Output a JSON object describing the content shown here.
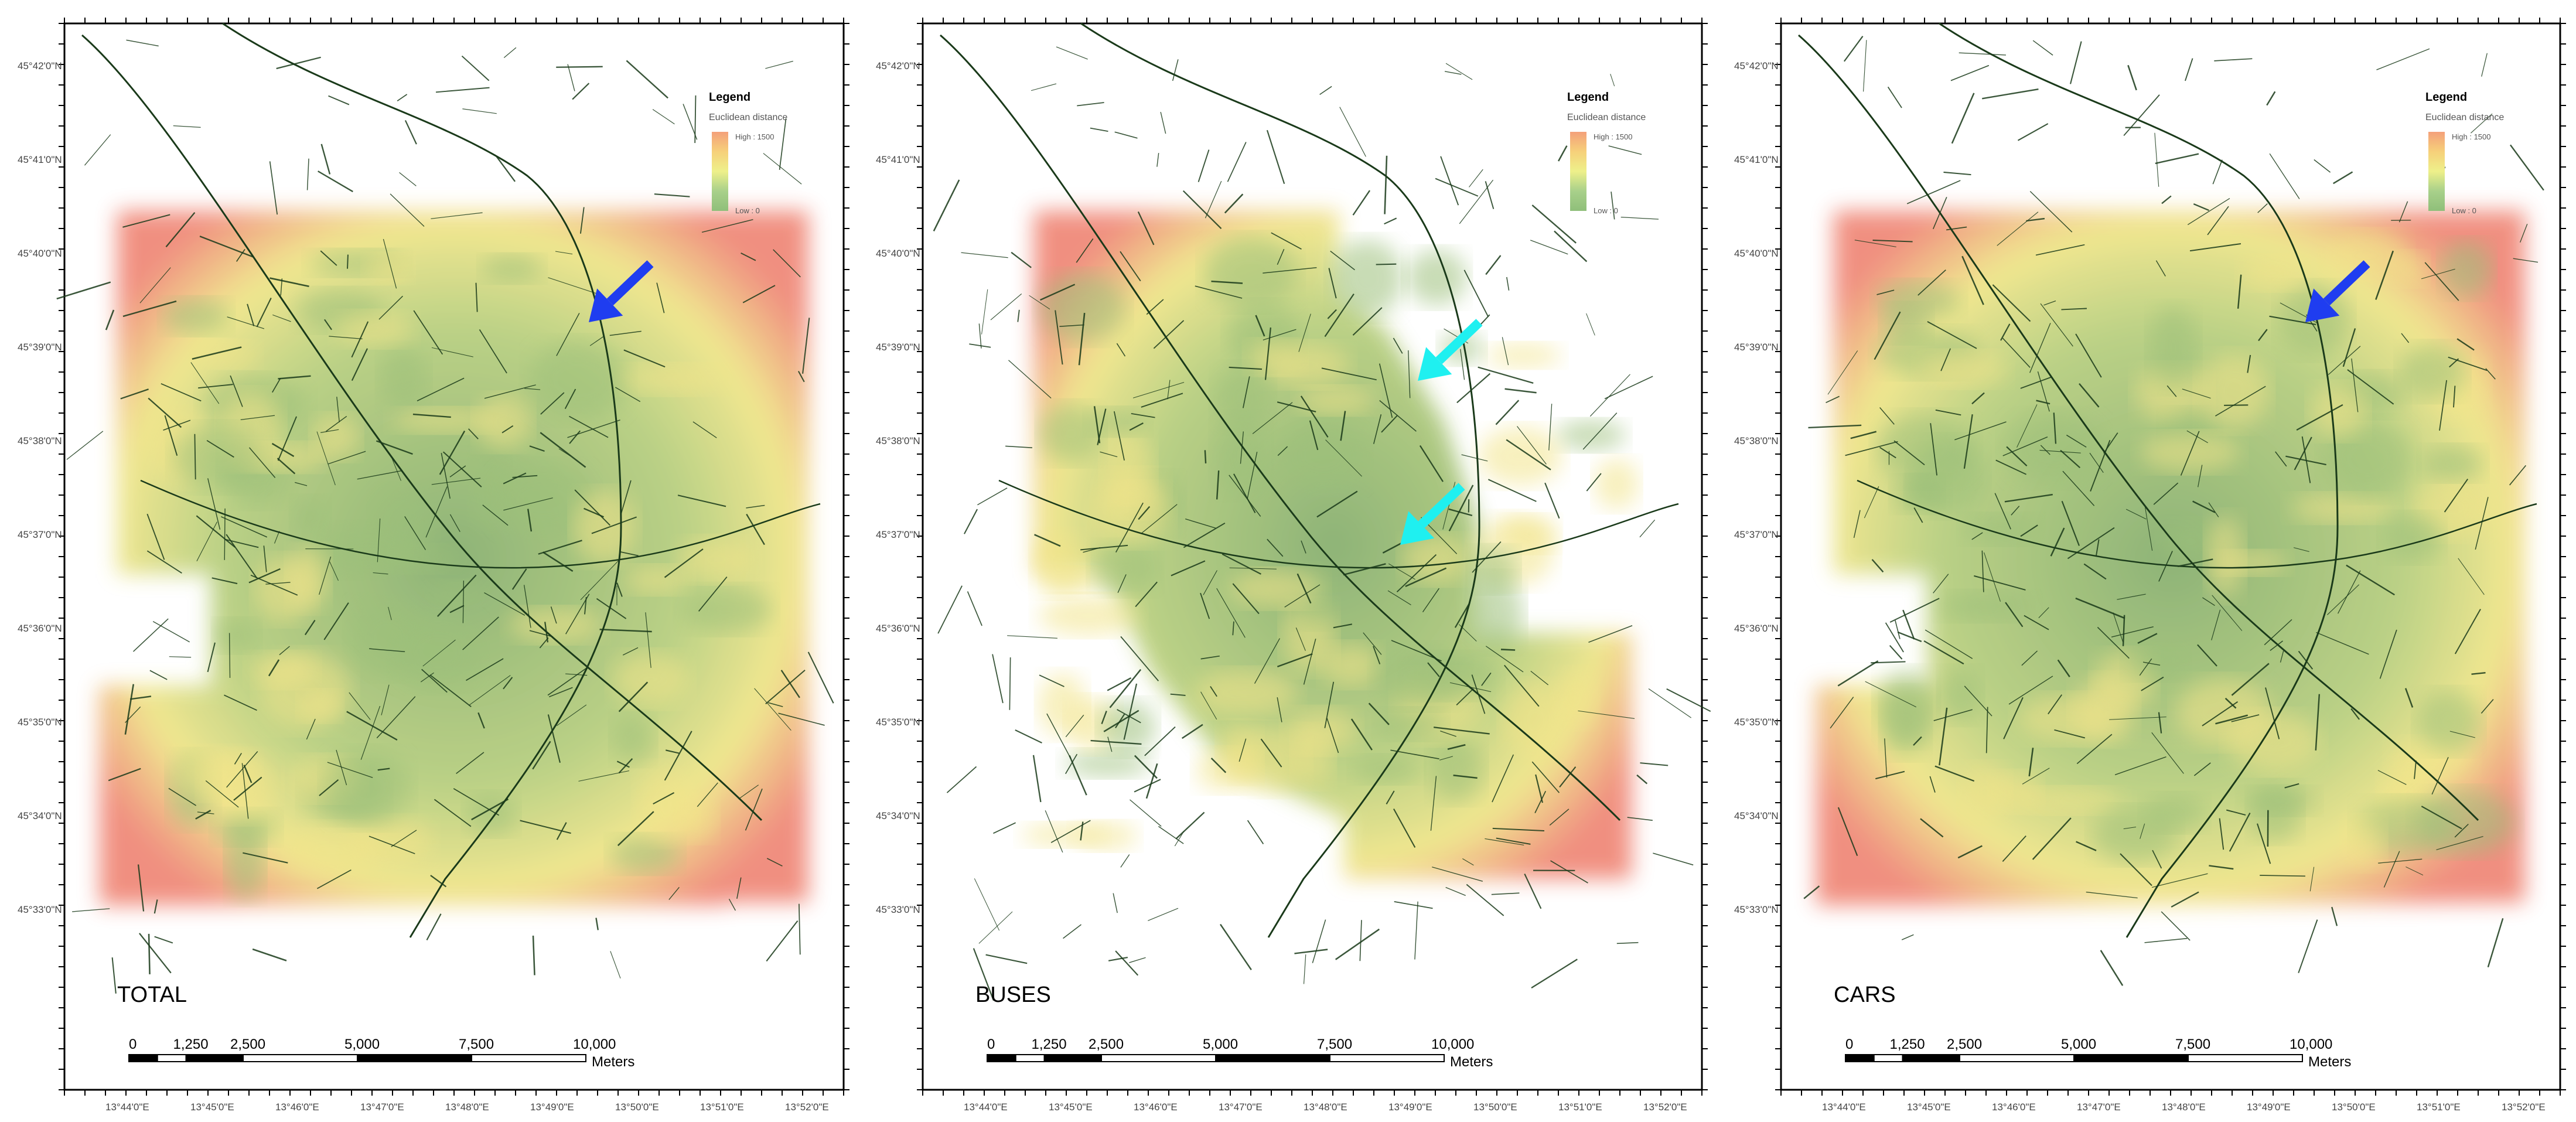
{
  "panels": [
    {
      "label": "TOTAL",
      "lat_labels": [
        "45°42'0\"N",
        "45°41'0\"N",
        "45°40'0\"N",
        "45°39'0\"N",
        "45°38'0\"N",
        "45°37'0\"N",
        "45°36'0\"N",
        "45°35'0\"N",
        "45°34'0\"N",
        "45°33'0\"N"
      ],
      "lon_labels": [
        "13°44'0\"E",
        "13°45'0\"E",
        "13°46'0\"E",
        "13°47'0\"E",
        "13°48'0\"E",
        "13°49'0\"E",
        "13°50'0\"E",
        "13°51'0\"E",
        "13°52'0\"E"
      ],
      "arrows": [
        {
          "color": "#1f3df0",
          "target": "upper-right road"
        }
      ]
    },
    {
      "label": "BUSES",
      "lat_labels": [
        "45°42'0\"N",
        "45°41'0\"N",
        "45°40'0\"N",
        "45°39'0\"N",
        "45°38'0\"N",
        "45°37'0\"N",
        "45°36'0\"N",
        "45°35'0\"N",
        "45°34'0\"N",
        "45°33'0\"N"
      ],
      "lon_labels": [
        "13°44'0\"E",
        "13°45'0\"E",
        "13°46'0\"E",
        "13°47'0\"E",
        "13°48'0\"E",
        "13°49'0\"E",
        "13°50'0\"E",
        "13°51'0\"E",
        "13°52'0\"E"
      ],
      "arrows": [
        {
          "color": "#1ff0f0",
          "target": "central area"
        },
        {
          "color": "#1ff0f0",
          "target": "lower central area"
        }
      ]
    },
    {
      "label": "CARS",
      "lat_labels": [
        "45°42'0\"N",
        "45°41'0\"N",
        "45°40'0\"N",
        "45°39'0\"N",
        "45°38'0\"N",
        "45°37'0\"N",
        "45°36'0\"N",
        "45°35'0\"N",
        "45°34'0\"N",
        "45°33'0\"N"
      ],
      "lon_labels": [
        "13°44'0\"E",
        "13°45'0\"E",
        "13°46'0\"E",
        "13°47'0\"E",
        "13°48'0\"E",
        "13°49'0\"E",
        "13°50'0\"E",
        "13°51'0\"E",
        "13°52'0\"E"
      ],
      "arrows": [
        {
          "color": "#1f3df0",
          "target": "upper-right road"
        }
      ]
    }
  ],
  "legend": {
    "title": "Legend",
    "subtitle": "Euclidean distance",
    "high_label": "High : 1500",
    "low_label": "Low : 0",
    "ramp_colors": [
      "#f4a07a",
      "#f6d07a",
      "#eef08a",
      "#a8d08a",
      "#8fbf7a"
    ]
  },
  "scale_bar": {
    "ticks": [
      "0",
      "1,250",
      "2,500",
      "5,000",
      "7,500",
      "10,000"
    ],
    "unit": "Meters"
  },
  "colors": {
    "road": "#1a3a1a",
    "heat_outer": "#f08a7a",
    "heat_mid": "#f0e68a",
    "heat_inner": "#88b070",
    "frame": "#000000"
  }
}
